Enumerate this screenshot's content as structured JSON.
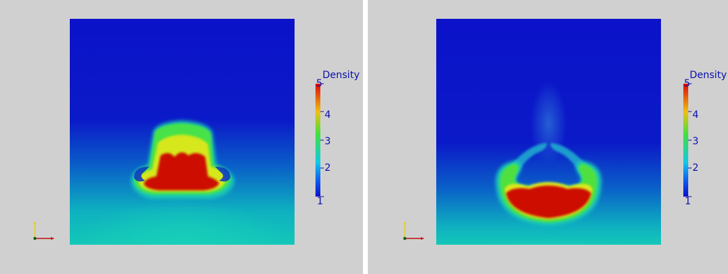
{
  "panels": [
    {
      "id": "left",
      "colorbar": {
        "title": "Density",
        "ticks": [
          "5",
          "4",
          "3",
          "2",
          "1"
        ],
        "range": [
          1,
          5
        ]
      }
    },
    {
      "id": "right",
      "colorbar": {
        "title": "Density",
        "ticks": [
          "5",
          "4",
          "3",
          "2",
          "1"
        ],
        "range": [
          1,
          5
        ]
      }
    }
  ],
  "triad": {
    "x": "",
    "y": "y"
  },
  "colors": {
    "background": "#d0d0d0",
    "low": "#0b10c8",
    "high": "#cc1000",
    "label": "#0b10a8"
  }
}
